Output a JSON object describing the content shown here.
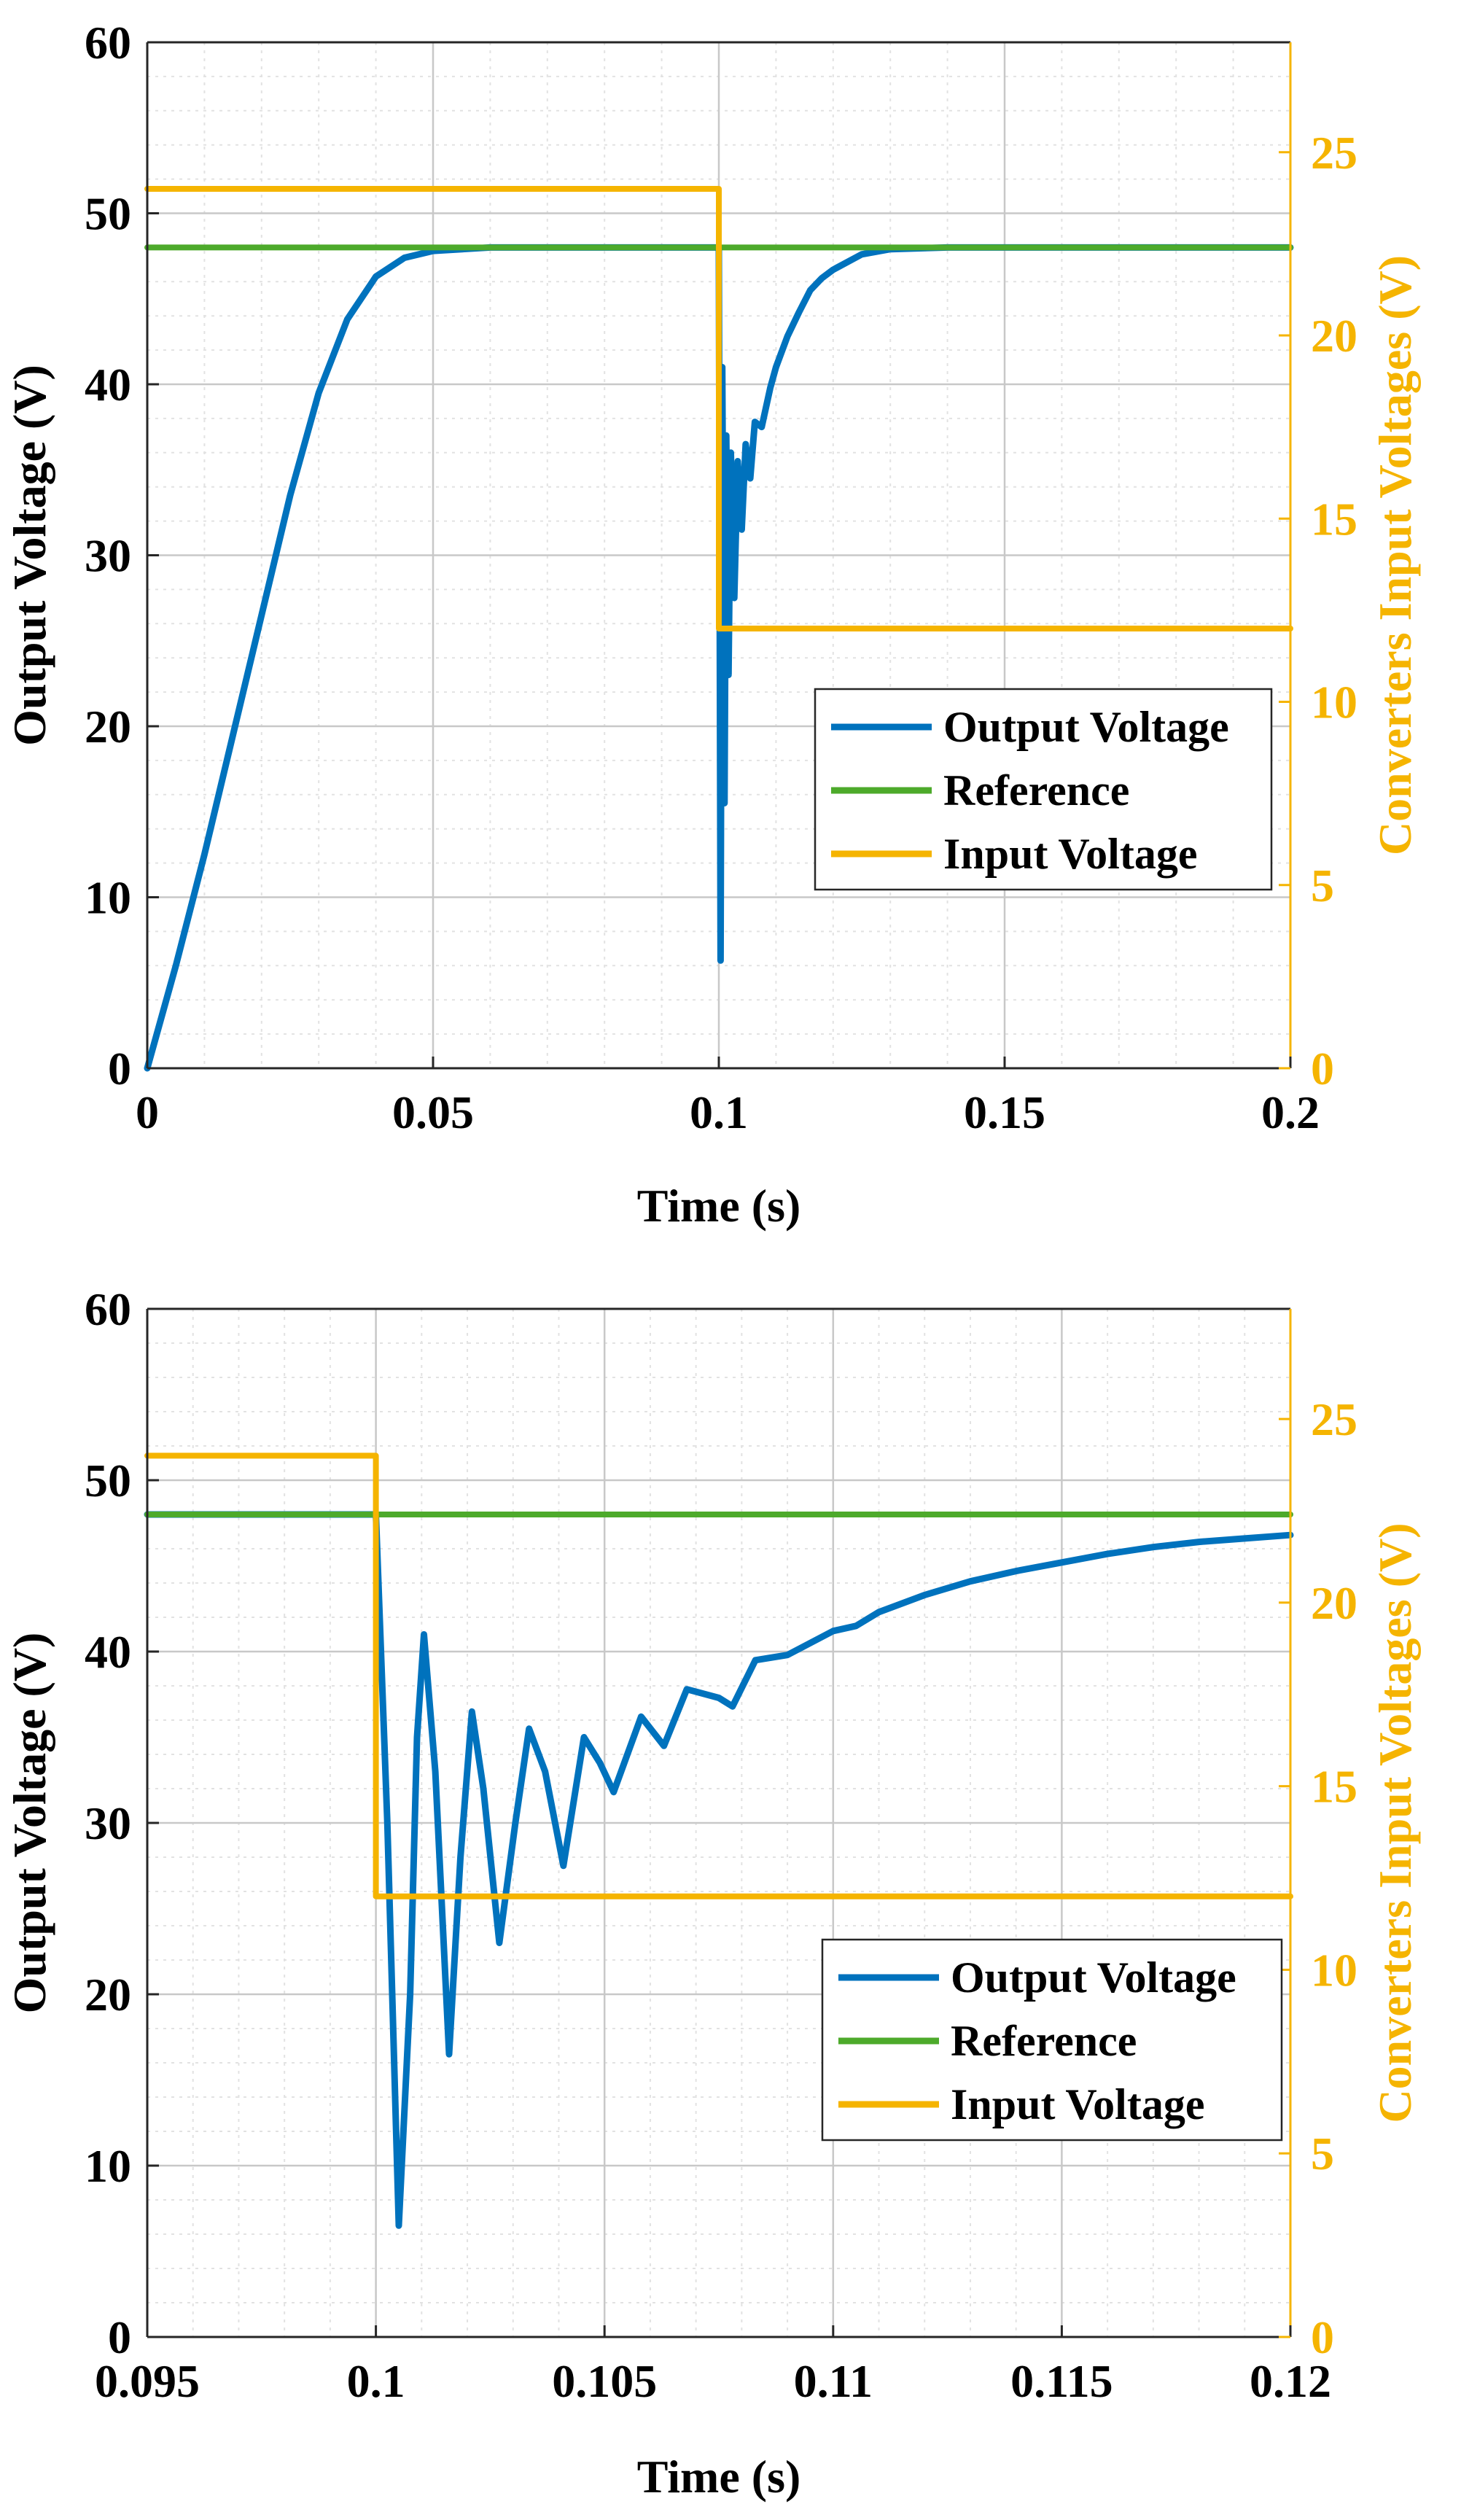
{
  "colors": {
    "output": "#0072BD",
    "reference": "#4DAA2B",
    "input": "#F5B400",
    "grid_major": "#c8c8c8",
    "grid_minor": "#e2e2e2",
    "axis": "#262626"
  },
  "chart_data": [
    {
      "type": "line",
      "xlabel": "Time (s)",
      "ylabel": "Output Voltage (V)",
      "y2label": "Converters Input Voltages (V)",
      "xlim": [
        0,
        0.2
      ],
      "ylim": [
        0,
        60
      ],
      "y2lim": [
        0,
        28
      ],
      "xticks": [
        0,
        0.05,
        0.1,
        0.15,
        0.2
      ],
      "xtick_labels": [
        "0",
        "0.05",
        "0.1",
        "0.15",
        "0.2"
      ],
      "yticks": [
        0,
        10,
        20,
        30,
        40,
        50,
        60
      ],
      "ytick_labels": [
        "0",
        "10",
        "20",
        "30",
        "40",
        "50",
        "60"
      ],
      "y2ticks": [
        0,
        5,
        10,
        15,
        20,
        25
      ],
      "y2tick_labels": [
        "0",
        "5",
        "10",
        "15",
        "20",
        "25"
      ],
      "grid": true,
      "minor_grid": true,
      "legend": {
        "position": "center-right",
        "entries": [
          "Output Voltage",
          "Reference",
          "Input Voltage"
        ]
      },
      "series": [
        {
          "name": "Output Voltage",
          "axis": "left",
          "x": [
            0,
            0.005,
            0.01,
            0.015,
            0.02,
            0.025,
            0.03,
            0.035,
            0.04,
            0.045,
            0.05,
            0.06,
            0.07,
            0.08,
            0.09,
            0.0995,
            0.1,
            0.1003,
            0.1006,
            0.101,
            0.1013,
            0.1017,
            0.1021,
            0.1027,
            0.1033,
            0.104,
            0.1047,
            0.1055,
            0.1063,
            0.1075,
            0.109,
            0.11,
            0.112,
            0.114,
            0.116,
            0.118,
            0.12,
            0.125,
            0.13,
            0.14,
            0.15,
            0.16,
            0.17,
            0.18,
            0.19,
            0.2
          ],
          "values": [
            0,
            6,
            12.5,
            19.5,
            26.5,
            33.5,
            39.5,
            43.8,
            46.3,
            47.4,
            47.8,
            48,
            48,
            48,
            48,
            48,
            48,
            6.3,
            41,
            15.5,
            37,
            23,
            36,
            27.5,
            35.5,
            31.5,
            36.5,
            34.5,
            37.8,
            37.5,
            39.8,
            41,
            42.8,
            44.2,
            45.5,
            46.2,
            46.7,
            47.6,
            47.9,
            48,
            48,
            48,
            48,
            48,
            48,
            48
          ]
        },
        {
          "name": "Reference",
          "axis": "left",
          "x": [
            0,
            0.2
          ],
          "values": [
            48,
            48
          ]
        },
        {
          "name": "Input Voltage",
          "axis": "right",
          "x": [
            0,
            0.1,
            0.1,
            0.2
          ],
          "values": [
            24,
            24,
            12,
            12
          ]
        }
      ]
    },
    {
      "type": "line",
      "xlabel": "Time (s)",
      "ylabel": "Output Voltage (V)",
      "y2label": "Converters Input Voltages (V)",
      "xlim": [
        0.095,
        0.12
      ],
      "ylim": [
        0,
        60
      ],
      "y2lim": [
        0,
        28
      ],
      "xticks": [
        0.095,
        0.1,
        0.105,
        0.11,
        0.115,
        0.12
      ],
      "xtick_labels": [
        "0.095",
        "0.1",
        "0.105",
        "0.11",
        "0.115",
        "0.12"
      ],
      "yticks": [
        0,
        10,
        20,
        30,
        40,
        50,
        60
      ],
      "ytick_labels": [
        "0",
        "10",
        "20",
        "30",
        "40",
        "50",
        "60"
      ],
      "y2ticks": [
        0,
        5,
        10,
        15,
        20,
        25
      ],
      "y2tick_labels": [
        "0",
        "5",
        "10",
        "15",
        "20",
        "25"
      ],
      "grid": true,
      "minor_grid": true,
      "legend": {
        "position": "center-right",
        "entries": [
          "Output Voltage",
          "Reference",
          "Input Voltage"
        ]
      },
      "series": [
        {
          "name": "Output Voltage",
          "axis": "left",
          "x": [
            0.095,
            0.096,
            0.097,
            0.098,
            0.099,
            0.1,
            0.10025,
            0.1005,
            0.10075,
            0.1009,
            0.10105,
            0.1013,
            0.1016,
            0.10185,
            0.1021,
            0.10235,
            0.1027,
            0.10305,
            0.10335,
            0.1037,
            0.1041,
            0.10455,
            0.1049,
            0.1052,
            0.1058,
            0.1063,
            0.1068,
            0.1075,
            0.1078,
            0.1083,
            0.109,
            0.11,
            0.1105,
            0.111,
            0.112,
            0.113,
            0.114,
            0.115,
            0.116,
            0.117,
            0.118,
            0.119,
            0.12
          ],
          "values": [
            48,
            48,
            48,
            48,
            48,
            48,
            30,
            6.5,
            20,
            35,
            41,
            33,
            16.5,
            28,
            36.5,
            32,
            23,
            30,
            35.5,
            33,
            27.5,
            35,
            33.5,
            31.8,
            36.2,
            34.5,
            37.8,
            37.3,
            36.8,
            39.5,
            39.8,
            41.2,
            41.5,
            42.3,
            43.3,
            44.1,
            44.7,
            45.2,
            45.7,
            46.1,
            46.4,
            46.6,
            46.8
          ]
        },
        {
          "name": "Reference",
          "axis": "left",
          "x": [
            0.095,
            0.12
          ],
          "values": [
            48,
            48
          ]
        },
        {
          "name": "Input Voltage",
          "axis": "right",
          "x": [
            0.095,
            0.1,
            0.1,
            0.12
          ],
          "values": [
            24,
            24,
            12,
            12
          ]
        }
      ]
    }
  ]
}
